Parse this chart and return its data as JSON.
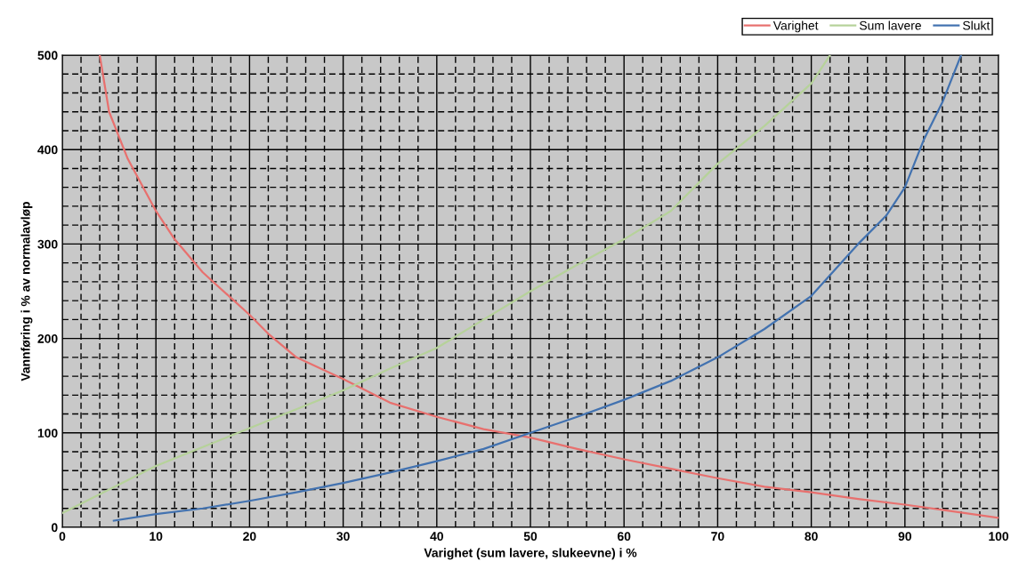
{
  "chart_data": {
    "type": "line",
    "xlabel": "Varighet (sum lavere, slukeevne) i %",
    "ylabel": "Vannføring i % av normalavløp",
    "xlim": [
      0,
      100
    ],
    "ylim": [
      0,
      500
    ],
    "xticks": [
      0,
      {
        "value": 2,
        "label": null
      },
      {
        "value": 4,
        "label": null
      },
      {
        "value": 6,
        "label": null
      },
      {
        "value": 8,
        "label": null
      },
      10,
      {
        "value": 12,
        "label": null
      },
      {
        "value": 14,
        "label": null
      },
      {
        "value": 16,
        "label": null
      },
      {
        "value": 18,
        "label": null
      },
      20,
      {
        "value": 22,
        "label": null
      },
      {
        "value": 24,
        "label": null
      },
      {
        "value": 26,
        "label": null
      },
      {
        "value": 28,
        "label": null
      },
      30,
      {
        "value": 32,
        "label": null
      },
      {
        "value": 34,
        "label": null
      },
      {
        "value": 36,
        "label": null
      },
      {
        "value": 38,
        "label": null
      },
      40,
      {
        "value": 42,
        "label": null
      },
      {
        "value": 44,
        "label": null
      },
      {
        "value": 46,
        "label": null
      },
      {
        "value": 48,
        "label": null
      },
      50,
      {
        "value": 52,
        "label": null
      },
      {
        "value": 54,
        "label": null
      },
      {
        "value": 56,
        "label": null
      },
      {
        "value": 58,
        "label": null
      },
      60,
      {
        "value": 62,
        "label": null
      },
      {
        "value": 64,
        "label": null
      },
      {
        "value": 66,
        "label": null
      },
      {
        "value": 68,
        "label": null
      },
      70,
      {
        "value": 72,
        "label": null
      },
      {
        "value": 74,
        "label": null
      },
      {
        "value": 76,
        "label": null
      },
      {
        "value": 78,
        "label": null
      },
      80,
      {
        "value": 82,
        "label": null
      },
      {
        "value": 84,
        "label": null
      },
      {
        "value": 86,
        "label": null
      },
      {
        "value": 88,
        "label": null
      },
      90,
      {
        "value": 92,
        "label": null
      },
      {
        "value": 94,
        "label": null
      },
      {
        "value": 96,
        "label": null
      },
      {
        "value": 98,
        "label": null
      },
      100
    ],
    "yticks": [
      0,
      {
        "value": 20,
        "label": null
      },
      {
        "value": 40,
        "label": null
      },
      {
        "value": 60,
        "label": null
      },
      {
        "value": 80,
        "label": null
      },
      100,
      {
        "value": 120,
        "label": null
      },
      {
        "value": 140,
        "label": null
      },
      {
        "value": 160,
        "label": null
      },
      {
        "value": 180,
        "label": null
      },
      200,
      {
        "value": 220,
        "label": null
      },
      {
        "value": 240,
        "label": null
      },
      {
        "value": 260,
        "label": null
      },
      {
        "value": 280,
        "label": null
      },
      300,
      {
        "value": 320,
        "label": null
      },
      {
        "value": 340,
        "label": null
      },
      {
        "value": 360,
        "label": null
      },
      {
        "value": 380,
        "label": null
      },
      400,
      {
        "value": 420,
        "label": null
      },
      {
        "value": 440,
        "label": null
      },
      {
        "value": 460,
        "label": null
      },
      {
        "value": 480,
        "label": null
      },
      500
    ],
    "grid": true,
    "legend": "top right",
    "marker": "none",
    "line_style": "solid",
    "series": [
      {
        "name": "Varighet",
        "color": "#e8706e",
        "x": [
          4,
          5,
          7,
          10,
          12,
          15,
          18,
          20,
          22,
          25,
          30,
          35,
          40,
          45,
          50,
          55,
          60,
          65,
          70,
          75,
          80,
          85,
          90,
          95,
          100
        ],
        "values": [
          500,
          440,
          390,
          335,
          305,
          270,
          243,
          225,
          205,
          180,
          157,
          132,
          117,
          104,
          95,
          83,
          72,
          62,
          52,
          43,
          37,
          30,
          24,
          17,
          10
        ]
      },
      {
        "name": "Sum lavere",
        "color": "#b6d29a",
        "x": [
          0,
          5,
          10,
          15,
          20,
          25,
          30,
          35,
          40,
          45,
          50,
          55,
          60,
          65,
          70,
          75,
          80,
          82
        ],
        "values": [
          15,
          40,
          65,
          85,
          105,
          125,
          145,
          168,
          190,
          220,
          250,
          278,
          305,
          335,
          385,
          425,
          470,
          500
        ]
      },
      {
        "name": "Slukt",
        "color": "#4272b0",
        "x": [
          5.5,
          10,
          15,
          20,
          25,
          30,
          35,
          40,
          45,
          50,
          55,
          60,
          65,
          70,
          75,
          80,
          85,
          88,
          90,
          92,
          94,
          96
        ],
        "values": [
          7,
          14,
          20,
          28,
          37,
          47,
          58,
          70,
          83,
          100,
          117,
          135,
          155,
          180,
          210,
          245,
          300,
          330,
          360,
          410,
          450,
          500
        ]
      }
    ]
  }
}
